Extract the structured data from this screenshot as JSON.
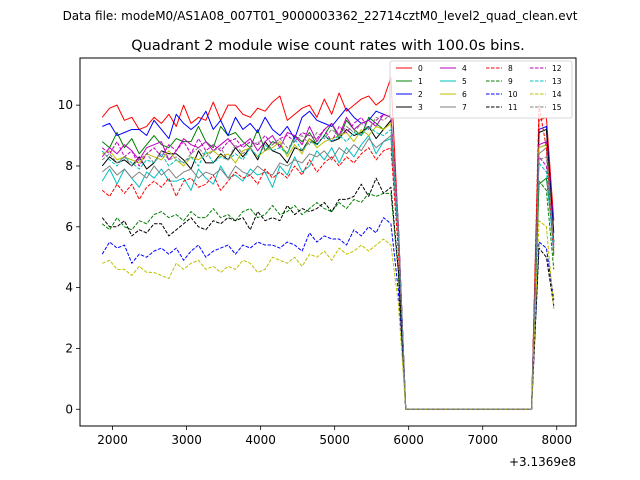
{
  "figure": {
    "suptitle": "Data file: modeM0/AS1A08_007T01_9000003362_22714cztM0_level2_quad_clean.evt"
  },
  "chart_data": {
    "type": "line",
    "title": "Quadrant 2 module wise count rates with 100.0s bins.",
    "xlabel": "",
    "ylabel": "",
    "x_offset_label": "+3.1369e8",
    "xlim": [
      1560,
      8260
    ],
    "ylim": [
      -0.55,
      11.55
    ],
    "xticks": [
      2000,
      3000,
      4000,
      5000,
      6000,
      7000,
      8000
    ],
    "xtick_labels": [
      "2000",
      "3000",
      "4000",
      "5000",
      "6000",
      "7000",
      "8000"
    ],
    "yticks": [
      0,
      2,
      4,
      6,
      8,
      10
    ],
    "ytick_labels": [
      "0",
      "2",
      "4",
      "6",
      "8",
      "10"
    ],
    "grid": false,
    "legend_placement": "top-right",
    "legend_columns": 4,
    "x": [
      1860,
      1960,
      2060,
      2160,
      2260,
      2360,
      2460,
      2560,
      2660,
      2760,
      2860,
      2960,
      3060,
      3160,
      3260,
      3360,
      3460,
      3560,
      3660,
      3760,
      3860,
      3960,
      4060,
      4160,
      4260,
      4360,
      4460,
      4560,
      4660,
      4760,
      4860,
      4960,
      5060,
      5160,
      5260,
      5360,
      5460,
      5560,
      5660,
      5760,
      5860,
      5960,
      6060,
      7560,
      7660,
      7760,
      7860,
      7960
    ],
    "series": [
      {
        "name": "0",
        "color": "#ff0000",
        "dash": "solid",
        "values": [
          9.6,
          9.9,
          10.0,
          9.5,
          9.6,
          9.2,
          9.3,
          9.6,
          9.4,
          9.7,
          9.3,
          10.0,
          9.4,
          9.6,
          9.5,
          10.1,
          9.5,
          10.0,
          10.0,
          9.7,
          9.6,
          9.9,
          9.8,
          10.1,
          10.3,
          9.5,
          9.7,
          9.9,
          10.0,
          9.6,
          10.2,
          9.7,
          10.4,
          9.8,
          10.0,
          10.2,
          10.3,
          10.0,
          10.2,
          10.9,
          6.0,
          0.0,
          0.0,
          0.0,
          0.0,
          9.5,
          9.6,
          6.2
        ]
      },
      {
        "name": "1",
        "color": "#008000",
        "dash": "solid",
        "values": [
          8.8,
          8.6,
          9.1,
          8.6,
          8.9,
          8.4,
          8.7,
          9.0,
          8.7,
          8.6,
          8.9,
          8.8,
          8.8,
          9.3,
          8.8,
          8.6,
          9.3,
          9.0,
          9.1,
          8.8,
          8.6,
          9.2,
          8.5,
          8.8,
          8.7,
          8.4,
          9.0,
          8.8,
          9.1,
          8.7,
          9.0,
          9.4,
          8.9,
          9.5,
          9.2,
          9.0,
          9.6,
          9.4,
          9.2,
          9.5,
          5.8,
          0.0,
          0.0,
          0.0,
          0.0,
          7.4,
          7.6,
          5.5
        ]
      },
      {
        "name": "2",
        "color": "#0000ff",
        "dash": "solid",
        "values": [
          9.3,
          9.4,
          9.0,
          9.1,
          9.2,
          9.2,
          9.0,
          9.5,
          9.2,
          8.9,
          9.7,
          9.4,
          9.2,
          9.4,
          9.8,
          9.2,
          9.5,
          9.0,
          9.6,
          9.2,
          9.4,
          9.1,
          9.6,
          9.2,
          9.0,
          9.3,
          8.9,
          9.6,
          9.8,
          9.5,
          9.4,
          9.3,
          9.6,
          9.9,
          9.6,
          9.4,
          9.5,
          9.8,
          9.7,
          9.6,
          6.1,
          0.0,
          0.0,
          0.0,
          0.0,
          9.2,
          9.3,
          5.8
        ]
      },
      {
        "name": "3",
        "color": "#000000",
        "dash": "solid",
        "values": [
          8.0,
          8.3,
          8.1,
          8.2,
          8.0,
          8.3,
          7.9,
          8.1,
          8.5,
          8.4,
          8.4,
          8.2,
          7.9,
          8.5,
          8.1,
          8.1,
          8.4,
          8.2,
          8.6,
          8.3,
          8.6,
          8.2,
          8.8,
          8.5,
          8.4,
          8.1,
          8.6,
          8.5,
          8.9,
          8.7,
          9.0,
          8.8,
          8.9,
          9.2,
          9.0,
          9.1,
          9.3,
          8.9,
          9.2,
          9.5,
          5.9,
          0.0,
          0.0,
          0.0,
          0.0,
          9.1,
          9.2,
          5.5
        ]
      },
      {
        "name": "4",
        "color": "#bf00bf",
        "dash": "solid",
        "values": [
          8.3,
          8.6,
          8.4,
          8.7,
          8.5,
          8.2,
          8.6,
          8.7,
          8.8,
          8.2,
          8.5,
          8.9,
          8.7,
          8.6,
          8.8,
          8.5,
          8.7,
          8.9,
          8.6,
          8.7,
          8.9,
          8.5,
          8.8,
          9.0,
          8.6,
          9.1,
          9.0,
          8.7,
          9.3,
          8.8,
          9.2,
          9.4,
          9.0,
          9.6,
          9.2,
          9.4,
          9.5,
          9.3,
          9.7,
          9.6,
          6.0,
          0.0,
          0.0,
          0.0,
          0.0,
          8.7,
          8.8,
          5.4
        ]
      },
      {
        "name": "5",
        "color": "#00bfbf",
        "dash": "solid",
        "values": [
          7.5,
          7.9,
          7.4,
          7.9,
          7.6,
          7.3,
          7.8,
          7.6,
          7.9,
          7.5,
          7.5,
          7.6,
          7.2,
          7.9,
          7.6,
          7.4,
          8.0,
          7.6,
          7.7,
          7.5,
          7.9,
          7.7,
          7.8,
          7.3,
          8.0,
          7.7,
          8.3,
          7.8,
          8.0,
          8.5,
          8.2,
          8.6,
          8.1,
          8.6,
          8.3,
          8.7,
          9.0,
          8.4,
          8.8,
          8.9,
          5.6,
          0.0,
          0.0,
          0.0,
          0.0,
          8.6,
          8.7,
          5.3
        ]
      },
      {
        "name": "6",
        "color": "#bfbf00",
        "dash": "solid",
        "values": [
          8.4,
          8.5,
          8.2,
          8.3,
          8.2,
          8.1,
          8.4,
          8.3,
          8.2,
          8.5,
          8.2,
          8.0,
          8.3,
          8.2,
          8.4,
          8.5,
          8.3,
          8.4,
          8.1,
          8.5,
          8.6,
          8.3,
          8.5,
          8.6,
          8.8,
          8.3,
          8.7,
          8.4,
          8.9,
          8.6,
          8.8,
          8.9,
          9.0,
          9.1,
          8.8,
          9.2,
          9.0,
          9.3,
          9.2,
          9.4,
          5.9,
          0.0,
          0.0,
          0.0,
          0.0,
          8.6,
          8.7,
          5.2
        ]
      },
      {
        "name": "7",
        "color": "#808080",
        "dash": "solid",
        "values": [
          7.8,
          8.0,
          7.7,
          7.9,
          7.6,
          7.8,
          7.6,
          8.0,
          7.7,
          7.9,
          7.6,
          7.8,
          7.9,
          7.6,
          7.8,
          7.7,
          7.9,
          7.6,
          8.0,
          7.8,
          7.7,
          8.0,
          7.8,
          7.7,
          8.1,
          8.0,
          8.2,
          8.1,
          8.4,
          8.3,
          8.5,
          8.2,
          8.6,
          8.4,
          8.7,
          8.5,
          8.9,
          8.6,
          8.8,
          9.0,
          5.7,
          0.0,
          0.0,
          0.0,
          0.0,
          8.4,
          8.6,
          5.1
        ]
      },
      {
        "name": "8",
        "color": "#ff0000",
        "dash": "dashed",
        "values": [
          7.2,
          7.0,
          7.4,
          7.1,
          7.4,
          6.9,
          7.3,
          7.5,
          7.3,
          7.6,
          7.0,
          7.5,
          7.6,
          7.3,
          7.4,
          7.7,
          7.2,
          7.5,
          7.8,
          7.6,
          7.7,
          7.4,
          7.9,
          7.6,
          7.8,
          7.6,
          8.0,
          7.7,
          8.2,
          7.8,
          8.1,
          8.3,
          8.0,
          8.3,
          8.1,
          8.4,
          8.6,
          8.2,
          8.5,
          8.6,
          5.2,
          0.0,
          0.0,
          0.0,
          0.0,
          10.0,
          8.6,
          5.0
        ]
      },
      {
        "name": "9",
        "color": "#008000",
        "dash": "dashed",
        "values": [
          6.1,
          5.9,
          6.3,
          6.0,
          5.9,
          6.2,
          6.1,
          6.4,
          6.5,
          6.3,
          6.4,
          6.2,
          6.5,
          6.3,
          6.3,
          6.6,
          6.3,
          6.4,
          6.2,
          6.5,
          6.6,
          6.3,
          6.4,
          6.7,
          6.4,
          6.5,
          6.7,
          6.4,
          6.6,
          6.8,
          6.6,
          6.5,
          6.8,
          6.6,
          6.9,
          6.8,
          7.1,
          7.0,
          7.1,
          7.1,
          4.5,
          0.0,
          0.0,
          0.0,
          0.0,
          7.5,
          7.2,
          4.6
        ]
      },
      {
        "name": "10",
        "color": "#0000ff",
        "dash": "dashed",
        "values": [
          5.1,
          5.5,
          5.3,
          5.4,
          4.8,
          5.1,
          5.0,
          5.2,
          5.3,
          5.1,
          5.3,
          4.9,
          5.2,
          5.4,
          5.0,
          5.2,
          5.3,
          5.4,
          5.1,
          5.4,
          5.3,
          5.5,
          5.4,
          5.4,
          5.3,
          5.5,
          5.4,
          5.2,
          5.8,
          5.5,
          5.7,
          5.6,
          5.6,
          5.4,
          5.9,
          5.7,
          6.0,
          5.8,
          6.3,
          6.1,
          3.9,
          0.0,
          0.0,
          0.0,
          0.0,
          5.5,
          5.3,
          3.6
        ]
      },
      {
        "name": "11",
        "color": "#000000",
        "dash": "dashed",
        "values": [
          6.3,
          6.0,
          6.0,
          6.2,
          5.7,
          5.9,
          5.8,
          6.1,
          6.1,
          5.7,
          5.9,
          6.1,
          6.3,
          6.0,
          5.9,
          6.2,
          6.1,
          6.3,
          6.2,
          6.3,
          5.9,
          6.5,
          6.2,
          6.3,
          6.2,
          6.7,
          6.4,
          6.6,
          6.5,
          6.6,
          6.8,
          6.5,
          6.9,
          6.9,
          7.0,
          7.4,
          7.0,
          7.6,
          7.1,
          7.3,
          4.6,
          0.0,
          0.0,
          0.0,
          0.0,
          5.3,
          5.0,
          3.4
        ]
      },
      {
        "name": "12",
        "color": "#bf00bf",
        "dash": "dashed",
        "values": [
          8.6,
          8.4,
          8.8,
          8.3,
          8.5,
          8.0,
          8.4,
          8.6,
          8.3,
          8.7,
          8.5,
          8.8,
          8.4,
          8.9,
          8.5,
          8.7,
          8.5,
          8.8,
          8.9,
          8.6,
          8.8,
          8.7,
          9.0,
          8.7,
          8.9,
          9.0,
          8.8,
          9.1,
          9.0,
          8.9,
          9.2,
          8.8,
          9.3,
          9.1,
          9.4,
          9.6,
          9.2,
          9.5,
          9.7,
          9.6,
          6.0,
          0.0,
          0.0,
          0.0,
          0.0,
          8.3,
          8.0,
          5.2
        ]
      },
      {
        "name": "13",
        "color": "#00bfbf",
        "dash": "dashed",
        "values": [
          8.5,
          8.2,
          8.0,
          8.3,
          8.1,
          7.9,
          8.2,
          8.1,
          8.4,
          8.0,
          8.2,
          8.1,
          8.3,
          8.0,
          8.5,
          8.1,
          8.3,
          8.2,
          8.4,
          8.2,
          8.6,
          8.3,
          8.7,
          8.5,
          8.6,
          8.4,
          8.9,
          8.5,
          8.8,
          8.7,
          9.0,
          8.8,
          9.0,
          8.8,
          9.1,
          9.0,
          9.3,
          9.1,
          9.0,
          9.2,
          5.8,
          0.0,
          0.0,
          0.0,
          0.0,
          8.1,
          7.8,
          5.1
        ]
      },
      {
        "name": "14",
        "color": "#bfbf00",
        "dash": "dashed",
        "values": [
          4.8,
          4.9,
          4.6,
          4.6,
          4.4,
          4.7,
          4.5,
          4.5,
          4.4,
          4.3,
          4.8,
          4.6,
          4.8,
          4.9,
          4.6,
          4.7,
          4.5,
          4.7,
          4.6,
          4.9,
          4.8,
          4.5,
          4.6,
          5.0,
          4.9,
          4.8,
          5.0,
          4.7,
          5.1,
          5.0,
          5.2,
          4.9,
          5.3,
          5.1,
          5.2,
          5.4,
          5.2,
          5.4,
          5.6,
          5.4,
          3.5,
          0.0,
          0.0,
          0.0,
          0.0,
          6.2,
          6.0,
          3.3
        ]
      },
      {
        "name": "15",
        "color": "#808080",
        "dash": "dashed",
        "values": [
          8.2,
          8.4,
          8.1,
          8.3,
          8.0,
          8.2,
          8.4,
          8.1,
          8.5,
          8.2,
          8.3,
          8.1,
          8.4,
          8.6,
          8.3,
          8.5,
          8.6,
          8.2,
          8.7,
          8.4,
          8.6,
          8.8,
          8.5,
          8.7,
          8.9,
          8.6,
          8.8,
          9.0,
          8.7,
          9.1,
          8.9,
          9.2,
          9.0,
          9.3,
          9.1,
          9.4,
          9.2,
          9.6,
          9.5,
          9.7,
          6.1,
          0.0,
          0.0,
          0.0,
          0.0,
          8.2,
          8.3,
          5.3
        ]
      }
    ]
  }
}
